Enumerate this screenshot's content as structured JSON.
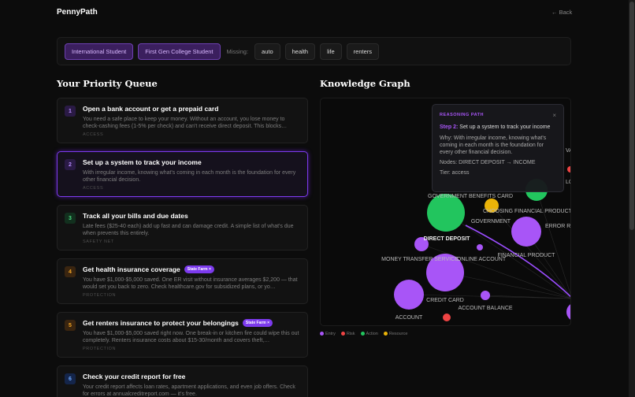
{
  "header": {
    "brand": "PennyPath",
    "back": "← Back"
  },
  "filters": {
    "active": [
      "International Student",
      "First Gen College Student"
    ],
    "missing_label": "Missing:",
    "missing": [
      "auto",
      "health",
      "life",
      "renters"
    ]
  },
  "queue": {
    "title": "Your Priority Queue",
    "cards": [
      {
        "number": "1",
        "title": "Open a bank account or get a prepaid card",
        "description": "You need a safe place to keep your money. Without an account, you lose money to check-cashing fees (1-5% per check) and can't receive direct deposit. This blocks…",
        "tier": "ACCESS"
      },
      {
        "number": "2",
        "title": "Set up a system to track your income",
        "description": "With irregular income, knowing what's coming in each month is the foundation for every other financial decision.",
        "tier": "ACCESS"
      },
      {
        "number": "3",
        "title": "Track all your bills and due dates",
        "description": "Late fees ($25-40 each) add up fast and can damage credit. A simple list of what's due when prevents this entirely.",
        "tier": "SAFETY NET"
      },
      {
        "number": "4",
        "title": "Get health insurance coverage",
        "badge": "State Farm ×",
        "description": "You have $1,000-$5,000 saved. One ER visit without insurance averages $2,200 — that would set you back to zero. Check healthcare.gov for subsidized plans, or yo…",
        "tier": "PROTECTION"
      },
      {
        "number": "5",
        "title": "Get renters insurance to protect your belongings",
        "badge": "State Farm ×",
        "description": "You have $1,000-$5,000 saved right now. One break-in or kitchen fire could wipe this out completely. Renters insurance costs about $15-30/month and covers theft,…",
        "tier": "PROTECTION"
      },
      {
        "number": "6",
        "title": "Check your credit report for free",
        "description": "Your credit report affects loan rates, apartment applications, and even job offers. Check for errors at annualcreditreport.com — it's free."
      }
    ]
  },
  "graph": {
    "title": "Knowledge Graph",
    "nodes": [
      {
        "label": "GOVERNMENT BENEFITS CARD"
      },
      {
        "label": "CHOOSING FINANCIAL PRODUCTS"
      },
      {
        "label": "GOVERNMENT"
      },
      {
        "label": "ERROR REPORTING"
      },
      {
        "label": "DIRECT DEPOSIT"
      },
      {
        "label": "FINANCIAL PRODUCT"
      },
      {
        "label": "MONEY TRANSFER SERVICE"
      },
      {
        "label": "ONLINE ACCOUNT"
      },
      {
        "label": "CREDIT CARD"
      },
      {
        "label": "ACCOUNT BALANCE"
      },
      {
        "label": "ACCOUNT"
      },
      {
        "label": "LOAN"
      },
      {
        "label": "VALUE"
      }
    ],
    "legend": [
      "Entry",
      "Risk",
      "Action",
      "Resource"
    ],
    "tooltip": {
      "heading": "REASONING PATH",
      "close": "×",
      "step": "Step 2:",
      "step_text": "Set up a system to track your income",
      "why": "Why: With irregular income, knowing what's coming in each month is the foundation for every other financial decision.",
      "nodes": "Nodes: DIRECT DEPOSIT → INCOME",
      "tier": "Tier: access"
    }
  }
}
